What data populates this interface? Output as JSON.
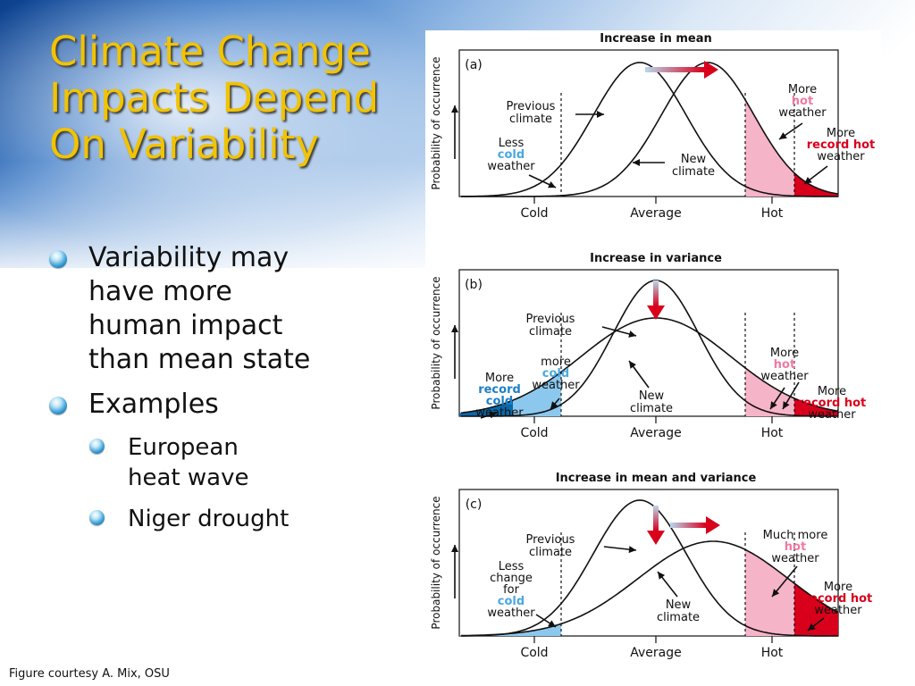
{
  "slide": {
    "title_lines": [
      "Climate Change",
      "Impacts Depend",
      "On Variability"
    ],
    "bullets": [
      {
        "level": 1,
        "lines": [
          "Variability may",
          "have more",
          "human impact",
          "than mean state"
        ]
      },
      {
        "level": 1,
        "lines": [
          "Examples"
        ]
      },
      {
        "level": 2,
        "lines": [
          "European",
          "heat wave"
        ]
      },
      {
        "level": 2,
        "lines": [
          "Niger drought"
        ]
      }
    ],
    "credit": "Figure courtesy A. Mix, OSU",
    "bullet_icon": "blue-orb-bullet-icon",
    "colors": {
      "title": "#f2c300",
      "header_blue": "#1f5fb0"
    }
  },
  "figure": {
    "y_axis_label": "Probability of occurrence",
    "x_labels": [
      "Cold",
      "Average",
      "Hot"
    ],
    "colors": {
      "cold_fill": "#8cc8ee",
      "record_cold_fill": "#0a67a8",
      "hot_fill": "#f6b4c8",
      "record_hot_fill": "#d9001b",
      "cold_text": "#4aa8e0",
      "hot_text": "#f07aa0",
      "record_hot_text": "#d9001b",
      "record_cold_text": "#1d7fc8"
    },
    "panels": [
      {
        "id": "a",
        "heading": "Increase in mean",
        "letter": "(a)",
        "previous_climate": [
          "Previous",
          "climate"
        ],
        "new_climate": [
          "New",
          "climate"
        ],
        "cold_note": [
          "Less",
          "cold",
          "weather"
        ],
        "hot_note": [
          "More",
          "hot",
          "weather"
        ],
        "record_hot_note": [
          "More",
          "record hot",
          "weather"
        ],
        "shift_arrow": "right-arrow-icon"
      },
      {
        "id": "b",
        "heading": "Increase in variance",
        "letter": "(b)",
        "previous_climate": [
          "Previous",
          "climate"
        ],
        "new_climate": [
          "New",
          "climate"
        ],
        "record_cold_note": [
          "More",
          "record",
          "cold",
          "weather"
        ],
        "cold_note": [
          "more",
          "cold",
          "weather"
        ],
        "hot_note": [
          "More",
          "hot",
          "weather"
        ],
        "record_hot_note": [
          "More",
          "record hot",
          "weather"
        ],
        "shift_arrow": "down-arrow-icon"
      },
      {
        "id": "c",
        "heading": "Increase in mean and variance",
        "letter": "(c)",
        "previous_climate": [
          "Previous",
          "climate"
        ],
        "new_climate": [
          "New",
          "climate"
        ],
        "cold_note": [
          "Less",
          "change",
          "for",
          "cold",
          "weather"
        ],
        "hot_note": [
          "Much more",
          "hot",
          "weather"
        ],
        "record_hot_note": [
          "More",
          "record hot",
          "weather"
        ],
        "shift_arrow": "down-and-right-arrow-icon"
      }
    ]
  }
}
